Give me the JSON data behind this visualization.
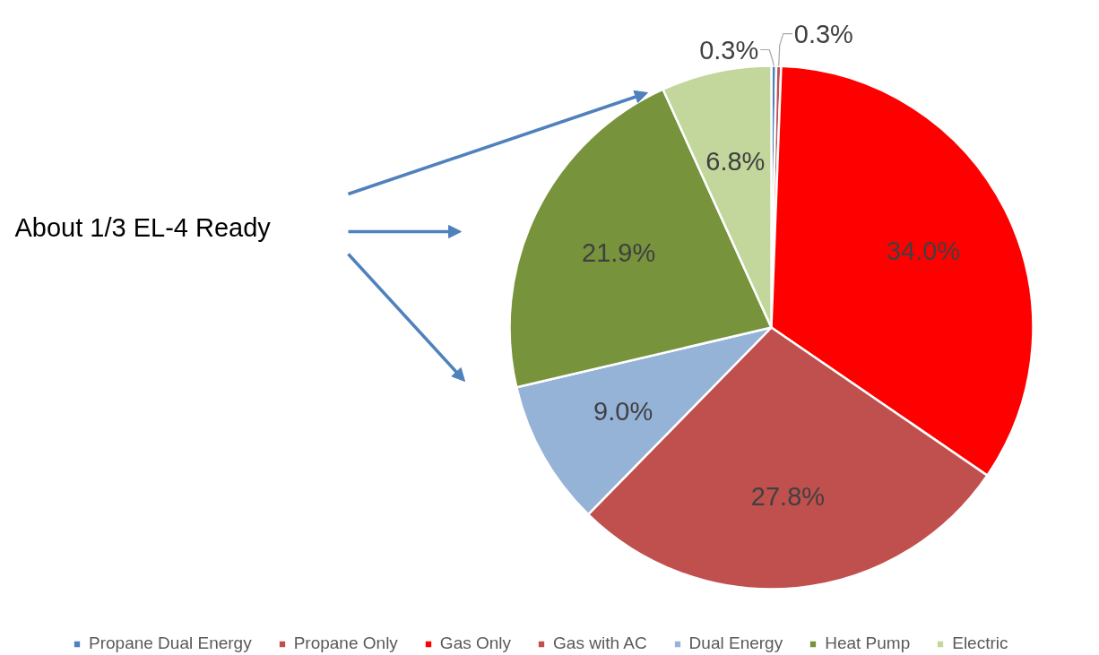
{
  "chart_data": {
    "type": "pie",
    "categories": [
      "Propane Dual Energy",
      "Propane Only",
      "Gas Only",
      "Gas with AC",
      "Dual Energy",
      "Heat Pump",
      "Electric"
    ],
    "values": [
      0.3,
      0.3,
      34.0,
      27.8,
      9.0,
      21.9,
      6.8
    ],
    "colors": [
      "#4f81bd",
      "#c0504d",
      "#ff0000",
      "#c0504d",
      "#95b3d7",
      "#77933c",
      "#c3d69b"
    ],
    "value_labels": [
      "0.3%",
      "0.3%",
      "34.0%",
      "27.8%",
      "9.0%",
      "21.9%",
      "6.8%"
    ],
    "annotations": [
      "About 1/3 EL-4 Ready"
    ],
    "legend": "bottom"
  }
}
